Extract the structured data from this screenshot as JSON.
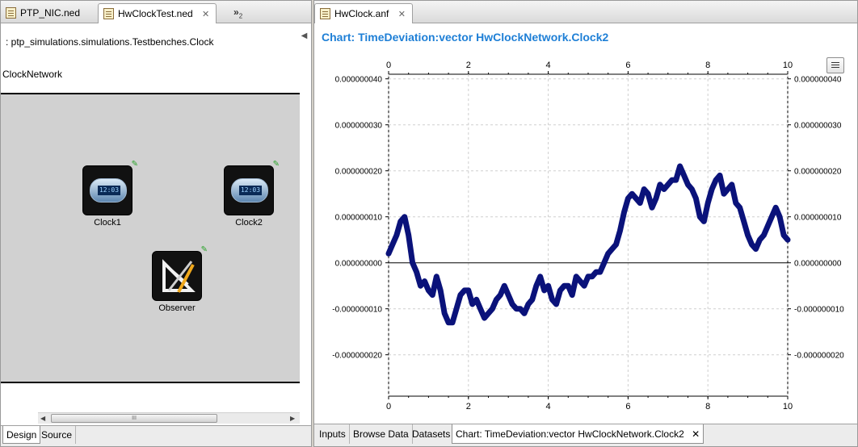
{
  "left_editor": {
    "tabs": [
      {
        "label": "PTP_NIC.ned",
        "active": false
      },
      {
        "label": "HwClockTest.ned",
        "active": true,
        "closable": true
      }
    ],
    "overflow": {
      "symbol": "»",
      "count": "2"
    },
    "package_line": ": ptp_simulations.simulations.Testbenches.Clock",
    "network_name": "ClockNetwork",
    "modules": [
      {
        "name": "Clock1",
        "icon": "clock-icon",
        "display": "12:03"
      },
      {
        "name": "Clock2",
        "icon": "clock-icon",
        "display": "12:03"
      },
      {
        "name": "Observer",
        "icon": "observer-icon"
      }
    ],
    "scroll_thumb_grip": "III",
    "bottom_tabs": [
      "Design",
      "Source"
    ]
  },
  "right_editor": {
    "tab": {
      "label": "HwClock.anf",
      "closable": true
    },
    "chart_title": "Chart: TimeDeviation:vector HwClockNetwork.Clock2",
    "bottom_tabs": [
      "Inputs",
      "Browse Data",
      "Datasets",
      "Chart: TimeDeviation:vector HwClockNetwork.Clock2"
    ]
  },
  "colors": {
    "chart_title": "#1e7fd6",
    "series": "#0a127a"
  },
  "chart_data": {
    "type": "line",
    "title": "",
    "xlabel": "",
    "ylabel": "",
    "xlim": [
      0,
      10
    ],
    "ylim": [
      -2.9e-08,
      4.1e-08
    ],
    "x_ticks": [
      0,
      2,
      4,
      6,
      8,
      10
    ],
    "y_ticks": [
      "0.000000040",
      "0.000000030",
      "0.000000020",
      "0.000000010",
      "0.000000000",
      "-0.000000010",
      "-0.000000020"
    ],
    "y_tick_values": [
      4e-08,
      3e-08,
      2e-08,
      1e-08,
      0,
      -1e-08,
      -2e-08
    ],
    "grid": true,
    "zero_line": true,
    "series": [
      {
        "x": [
          0.0,
          0.1,
          0.2,
          0.3,
          0.4,
          0.5,
          0.6,
          0.7,
          0.8,
          0.9,
          1.0,
          1.1,
          1.2,
          1.3,
          1.4,
          1.5,
          1.6,
          1.7,
          1.8,
          1.9,
          2.0,
          2.1,
          2.2,
          2.3,
          2.4,
          2.5,
          2.6,
          2.7,
          2.8,
          2.9,
          3.0,
          3.1,
          3.2,
          3.3,
          3.4,
          3.5,
          3.6,
          3.7,
          3.8,
          3.9,
          4.0,
          4.1,
          4.2,
          4.3,
          4.4,
          4.5,
          4.6,
          4.7,
          4.8,
          4.9,
          5.0,
          5.1,
          5.2,
          5.3,
          5.4,
          5.5,
          5.6,
          5.7,
          5.8,
          5.9,
          6.0,
          6.1,
          6.2,
          6.3,
          6.4,
          6.5,
          6.6,
          6.7,
          6.8,
          6.9,
          7.0,
          7.1,
          7.2,
          7.3,
          7.4,
          7.5,
          7.6,
          7.7,
          7.8,
          7.9,
          8.0,
          8.1,
          8.2,
          8.3,
          8.4,
          8.5,
          8.6,
          8.7,
          8.8,
          8.9,
          9.0,
          9.1,
          9.2,
          9.3,
          9.4,
          9.5,
          9.6,
          9.7,
          9.8,
          9.9,
          10.0
        ],
        "y": [
          2e-09,
          4e-09,
          6e-09,
          9e-09,
          1e-08,
          6e-09,
          0.0,
          -2e-09,
          -5e-09,
          -4e-09,
          -6e-09,
          -7e-09,
          -3e-09,
          -6e-09,
          -1.1e-08,
          -1.3e-08,
          -1.3e-08,
          -1e-08,
          -7e-09,
          -6e-09,
          -6e-09,
          -9e-09,
          -8e-09,
          -1e-08,
          -1.2e-08,
          -1.1e-08,
          -1e-08,
          -8e-09,
          -7e-09,
          -5e-09,
          -7e-09,
          -9e-09,
          -1e-08,
          -1e-08,
          -1.1e-08,
          -9e-09,
          -8e-09,
          -5e-09,
          -3e-09,
          -6e-09,
          -5e-09,
          -8e-09,
          -9e-09,
          -6e-09,
          -5e-09,
          -5e-09,
          -7e-09,
          -3e-09,
          -4e-09,
          -5e-09,
          -3e-09,
          -3e-09,
          -2e-09,
          -2e-09,
          0.0,
          2e-09,
          3e-09,
          4e-09,
          7e-09,
          1.1e-08,
          1.4e-08,
          1.5e-08,
          1.4e-08,
          1.3e-08,
          1.6e-08,
          1.5e-08,
          1.2e-08,
          1.4e-08,
          1.7e-08,
          1.6e-08,
          1.7e-08,
          1.8e-08,
          1.8e-08,
          2.1e-08,
          1.9e-08,
          1.7e-08,
          1.6e-08,
          1.4e-08,
          1e-08,
          9e-09,
          1.3e-08,
          1.6e-08,
          1.8e-08,
          1.9e-08,
          1.5e-08,
          1.6e-08,
          1.7e-08,
          1.3e-08,
          1.2e-08,
          9e-09,
          6e-09,
          4e-09,
          3e-09,
          5e-09,
          6e-09,
          8e-09,
          1e-08,
          1.2e-08,
          1e-08,
          6e-09,
          5e-09
        ]
      }
    ]
  }
}
